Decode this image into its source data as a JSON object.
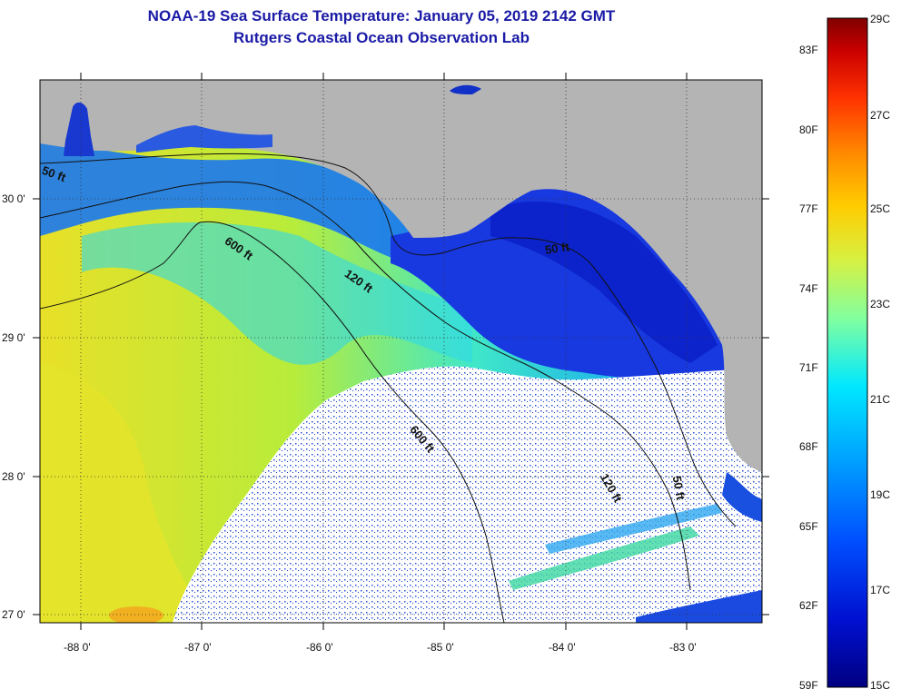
{
  "title": "NOAA-19 Sea Surface Temperature:  January 05, 2019 2142 GMT",
  "subtitle": "Rutgers Coastal Ocean Observation Lab",
  "map": {
    "region": "Northeastern Gulf of Mexico (Florida Big Bend / Panhandle)",
    "lat_labels": [
      "30 0'",
      "29 0'",
      "28 0'",
      "27 0'"
    ],
    "lon_labels": [
      "-88 0'",
      "-87 0'",
      "-86 0'",
      "-85 0'",
      "-84 0'",
      "-83 0'"
    ],
    "contour_labels": [
      "50 ft",
      "600 ft",
      "120 ft",
      "50 ft",
      "600 ft",
      "120 ft",
      "50 ft"
    ],
    "land_color": "#b4b4b4",
    "cloud_color": "#ffffff"
  },
  "colorbar": {
    "fahrenheit_labels": [
      "83F",
      "80F",
      "77F",
      "74F",
      "71F",
      "68F",
      "65F",
      "62F",
      "59F"
    ],
    "celsius_labels": [
      "29C",
      "27C",
      "25C",
      "23C",
      "21C",
      "19C",
      "17C",
      "15C"
    ],
    "colors": [
      "#800000",
      "#cc0000",
      "#ff3300",
      "#ff8800",
      "#ffcc00",
      "#d8f040",
      "#80ffa0",
      "#00e8ff",
      "#00a8ff",
      "#0050ff",
      "#0010d0",
      "#000080"
    ]
  }
}
